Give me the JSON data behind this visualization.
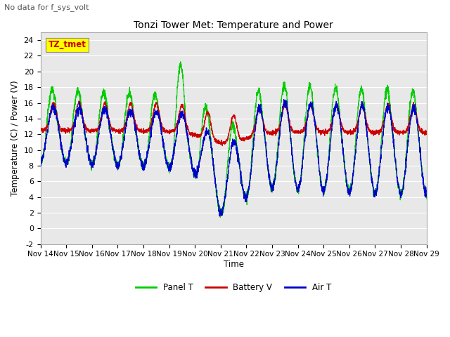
{
  "title": "Tonzi Tower Met: Temperature and Power",
  "subtitle": "No data for f_sys_volt",
  "ylabel": "Temperature (C) / Power (V)",
  "xlabel": "Time",
  "ylim": [
    -2,
    25
  ],
  "yticks": [
    -2,
    0,
    2,
    4,
    6,
    8,
    10,
    12,
    14,
    16,
    18,
    20,
    22,
    24
  ],
  "xlabels": [
    "Nov 14",
    "Nov 15",
    "Nov 16",
    "Nov 17",
    "Nov 18",
    "Nov 19",
    "Nov 20",
    "Nov 21",
    "Nov 22",
    "Nov 23",
    "Nov 24",
    "Nov 25",
    "Nov 26",
    "Nov 27",
    "Nov 28",
    "Nov 29"
  ],
  "legend_labels": [
    "Panel T",
    "Battery V",
    "Air T"
  ],
  "panel_color": "#00cc00",
  "battery_color": "#cc0000",
  "air_color": "#0000cc",
  "bg_color": "#ffffff",
  "plot_bg_color": "#e8e8e8",
  "grid_color": "#ffffff",
  "annotation_box_color": "#ffff00",
  "annotation_text": "TZ_tmet",
  "annotation_text_color": "#cc0000"
}
